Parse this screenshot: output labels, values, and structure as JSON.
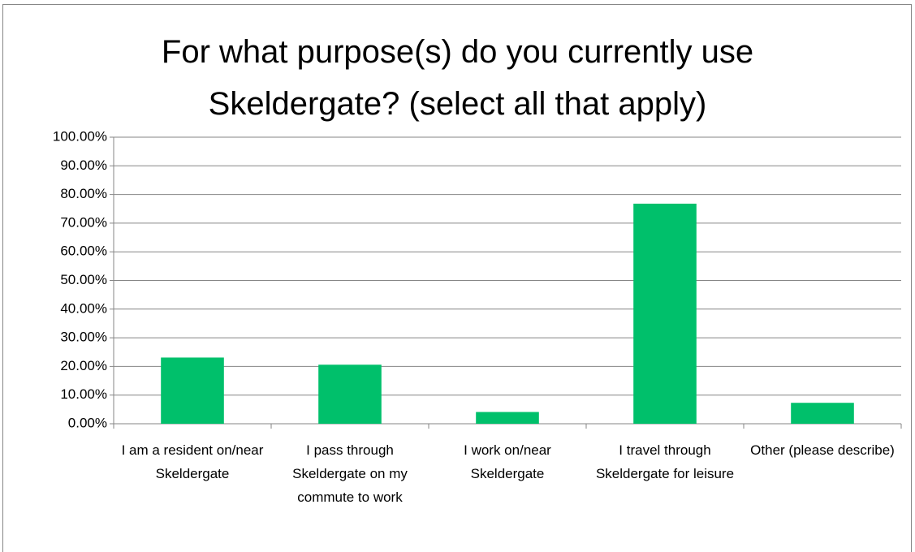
{
  "chart_data": {
    "type": "bar",
    "title": "For what purpose(s) do you currently use Skeldergate? (select all that apply)",
    "categories": [
      "I am a resident on/near Skeldergate",
      "I pass through Skeldergate on my commute to work",
      "I work on/near Skeldergate",
      "I travel through Skeldergate for leisure",
      "Other (please describe)"
    ],
    "values": [
      23.1,
      20.6,
      4.1,
      76.8,
      7.3
    ],
    "color": "#00c06b",
    "ylim": [
      0,
      100
    ],
    "yticks": [
      {
        "value": 0,
        "label": "0.00%"
      },
      {
        "value": 10,
        "label": "10.00%"
      },
      {
        "value": 20,
        "label": "20.00%"
      },
      {
        "value": 30,
        "label": "30.00%"
      },
      {
        "value": 40,
        "label": "40.00%"
      },
      {
        "value": 50,
        "label": "50.00%"
      },
      {
        "value": 60,
        "label": "60.00%"
      },
      {
        "value": 70,
        "label": "70.00%"
      },
      {
        "value": 80,
        "label": "80.00%"
      },
      {
        "value": 90,
        "label": "90.00%"
      },
      {
        "value": 100,
        "label": "100.00%"
      }
    ],
    "grid": true
  }
}
